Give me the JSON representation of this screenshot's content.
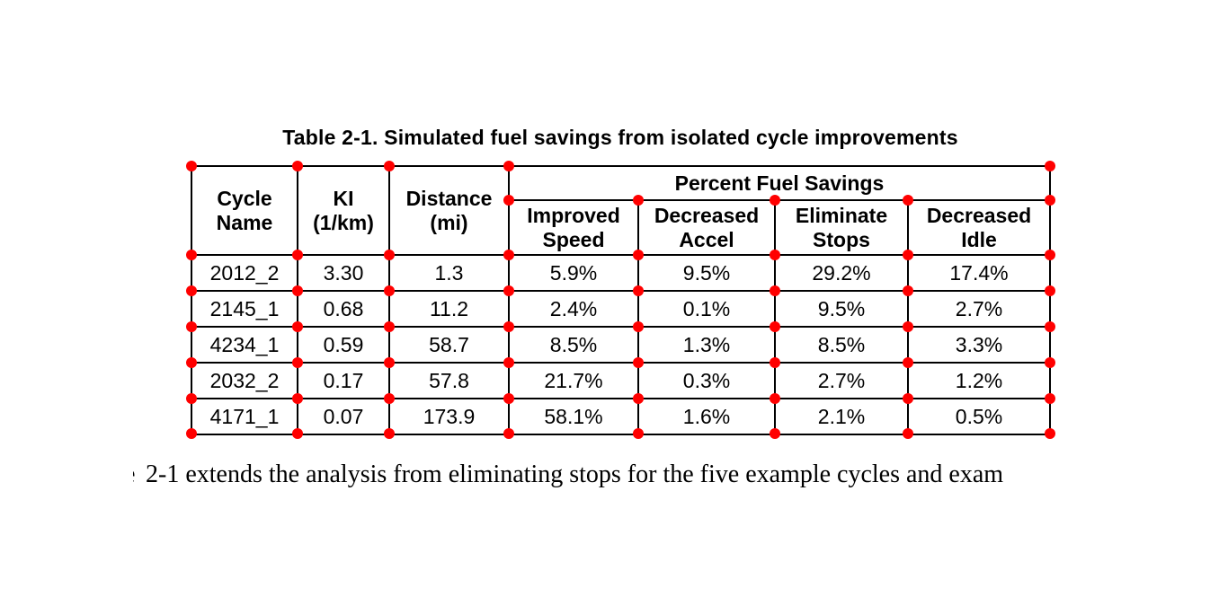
{
  "colors": {
    "marker": "#ff0000",
    "border": "#000000",
    "text": "#000000",
    "background": "#ffffff"
  },
  "title": "Table 2-1. Simulated fuel savings from isolated cycle improvements",
  "table": {
    "column_headers": [
      "Cycle\nName",
      "KI\n(1/km)",
      "Distance\n(mi)"
    ],
    "group_header": "Percent Fuel Savings",
    "sub_headers": [
      "Improved\nSpeed",
      "Decreased\nAccel",
      "Eliminate\nStops",
      "Decreased\nIdle"
    ],
    "rows": [
      [
        "2012_2",
        "3.30",
        "1.3",
        "5.9%",
        "9.5%",
        "29.2%",
        "17.4%"
      ],
      [
        "2145_1",
        "0.68",
        "11.2",
        "2.4%",
        "0.1%",
        "9.5%",
        "2.7%"
      ],
      [
        "4234_1",
        "0.59",
        "58.7",
        "8.5%",
        "1.3%",
        "8.5%",
        "3.3%"
      ],
      [
        "2032_2",
        "0.17",
        "57.8",
        "21.7%",
        "0.3%",
        "2.7%",
        "1.2%"
      ],
      [
        "4171_1",
        "0.07",
        "173.9",
        "58.1%",
        "1.6%",
        "2.1%",
        "0.5%"
      ]
    ]
  },
  "caption": {
    "fragment": "e",
    "text": "2-1 extends the analysis from eliminating stops for the five example cycles and exam"
  }
}
